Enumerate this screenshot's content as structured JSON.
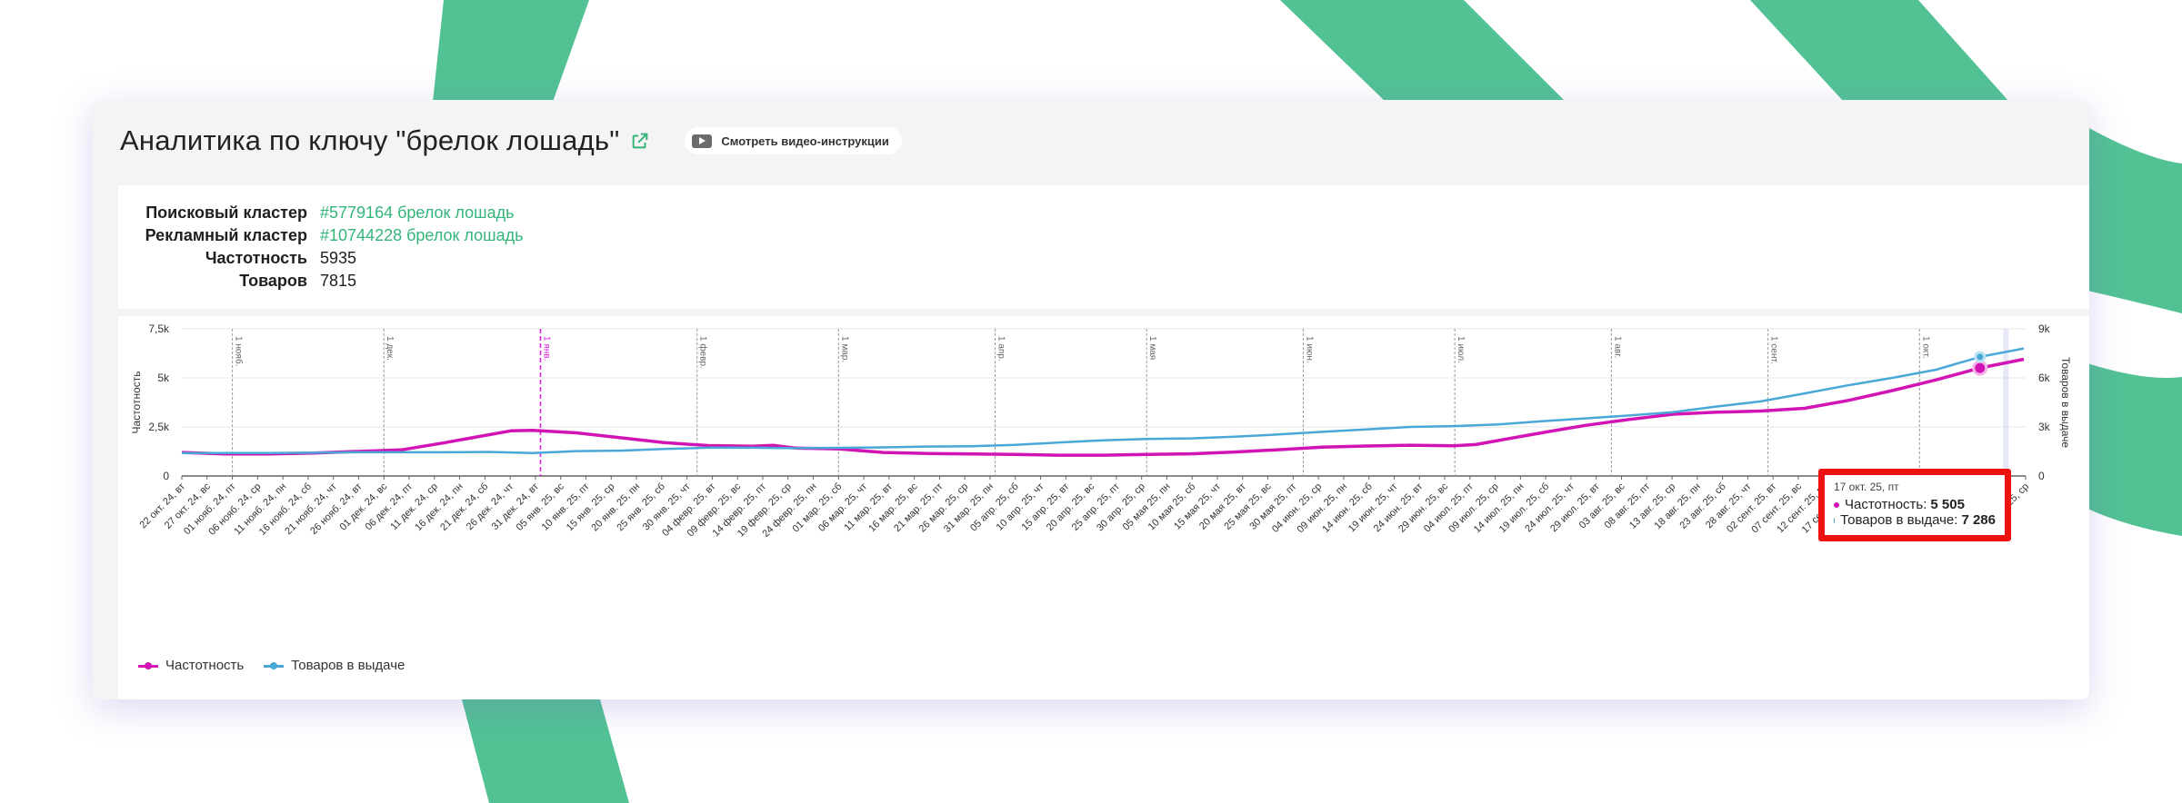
{
  "header": {
    "title": "Аналитика по ключу \"брелок лошадь\"",
    "video_label": "Смотреть видео-инструкции",
    "icons": [
      "external-link-icon",
      "play-icon"
    ]
  },
  "info": {
    "rows": [
      {
        "label": "Поисковый кластер",
        "value": "#5779164 брелок лошадь",
        "link": true
      },
      {
        "label": "Рекламный кластер",
        "value": "#10744228 брелок лошадь",
        "link": true
      },
      {
        "label": "Частотность",
        "value": "5935",
        "link": false
      },
      {
        "label": "Товаров",
        "value": "7815",
        "link": false
      }
    ]
  },
  "colors": {
    "accent_green": "#33b57a",
    "frequency": "#d214b4",
    "products": "#4aa8d8",
    "highlight_line": "#e020e0",
    "tooltip_border": "#ee1111"
  },
  "tooltip": {
    "date": "17 окт. 25, пт",
    "rows": [
      {
        "label": "Частотность:",
        "value": "5 505",
        "color": "#d214b4"
      },
      {
        "label": "Товаров в выдаче:",
        "value": "7 286",
        "color": "#4aa8d8"
      }
    ]
  },
  "chart_data": {
    "type": "line",
    "x_ticks": [
      "22 окт. 24, вт",
      "27 окт. 24, вс",
      "01 нояб. 24, пт",
      "06 нояб. 24, ср",
      "11 нояб. 24, пн",
      "16 нояб. 24, сб",
      "21 нояб. 24, чт",
      "26 нояб. 24, вт",
      "01 дек. 24, вс",
      "06 дек. 24, пт",
      "11 дек. 24, ср",
      "16 дек. 24, пн",
      "21 дек. 24, сб",
      "26 дек. 24, чт",
      "31 дек. 24, вт",
      "05 янв. 25, вс",
      "10 янв. 25, пт",
      "15 янв. 25, ср",
      "20 янв. 25, пн",
      "25 янв. 25, сб",
      "30 янв. 25, чт",
      "04 февр. 25, вт",
      "09 февр. 25, вс",
      "14 февр. 25, пт",
      "19 февр. 25, ср",
      "24 февр. 25, пн",
      "01 мар. 25, сб",
      "06 мар. 25, чт",
      "11 мар. 25, вт",
      "16 мар. 25, вс",
      "21 мар. 25, пт",
      "26 мар. 25, ср",
      "31 мар. 25, пн",
      "05 апр. 25, сб",
      "10 апр. 25, чт",
      "15 апр. 25, вт",
      "20 апр. 25, вс",
      "25 апр. 25, пт",
      "30 апр. 25, ср",
      "05 мая 25, пн",
      "10 мая 25, сб",
      "15 мая 25, чт",
      "20 мая 25, вт",
      "25 мая 25, вс",
      "30 мая 25, пт",
      "04 июн. 25, ср",
      "09 июн. 25, пн",
      "14 июн. 25, сб",
      "19 июн. 25, чт",
      "24 июн. 25, вт",
      "29 июн. 25, вс",
      "04 июл. 25, пт",
      "09 июл. 25, ср",
      "14 июл. 25, пн",
      "19 июл. 25, сб",
      "24 июл. 25, чт",
      "29 июл. 25, вт",
      "03 авг. 25, вс",
      "08 авг. 25, пт",
      "13 авг. 25, ср",
      "18 авг. 25, пн",
      "23 авг. 25, сб",
      "28 авг. 25, чт",
      "02 сент. 25, вт",
      "07 сент. 25, вс",
      "12 сент. 25, пт",
      "17 сент. 25, ср",
      "22 сент. 25, пн",
      "27 сент. 25, сб",
      "02 окт. 25, чт",
      "07 окт. 25, вт",
      "12 окт. 25, вс",
      "17 окт. 25, пт",
      "22 окт. 25, ср"
    ],
    "month_markers": [
      {
        "label": "1 нояб.",
        "index": 2
      },
      {
        "label": "1 дек.",
        "index": 8
      },
      {
        "label": "1 янв.",
        "index": 14.2,
        "highlight": true
      },
      {
        "label": "1 февр.",
        "index": 20.4
      },
      {
        "label": "1 мар.",
        "index": 26
      },
      {
        "label": "1 апр.",
        "index": 32.2
      },
      {
        "label": "1 мая",
        "index": 38.2
      },
      {
        "label": "1 июн.",
        "index": 44.4
      },
      {
        "label": "1 июл.",
        "index": 50.4
      },
      {
        "label": "1 авг.",
        "index": 56.6
      },
      {
        "label": "1 сент.",
        "index": 62.8
      },
      {
        "label": "1 окт.",
        "index": 68.8
      }
    ],
    "y_left": {
      "label": "Частотность",
      "ticks": [
        "0",
        "2,5k",
        "5k",
        "7,5k"
      ],
      "min": 0,
      "max": 7500
    },
    "y_right": {
      "label": "Товаров в выдаче",
      "ticks": [
        "0",
        "3k",
        "6k",
        "9k"
      ],
      "min": 0,
      "max": 9000
    },
    "hover_index": 72,
    "series": [
      {
        "name": "Частотность",
        "axis": "left",
        "color": "#d214b4",
        "points": [
          [
            0,
            1200
          ],
          [
            2,
            1120
          ],
          [
            4,
            1120
          ],
          [
            6,
            1170
          ],
          [
            8,
            1250
          ],
          [
            10,
            1330
          ],
          [
            12,
            1700
          ],
          [
            14,
            2100
          ],
          [
            15,
            2300
          ],
          [
            16,
            2330
          ],
          [
            18,
            2200
          ],
          [
            20,
            1950
          ],
          [
            22,
            1700
          ],
          [
            24,
            1550
          ],
          [
            26,
            1520
          ],
          [
            27,
            1560
          ],
          [
            28,
            1420
          ],
          [
            30,
            1380
          ],
          [
            32,
            1200
          ],
          [
            34,
            1150
          ],
          [
            36,
            1120
          ],
          [
            38,
            1100
          ],
          [
            40,
            1060
          ],
          [
            42,
            1060
          ],
          [
            44,
            1100
          ],
          [
            46,
            1130
          ],
          [
            48,
            1220
          ],
          [
            50,
            1340
          ],
          [
            52,
            1470
          ],
          [
            54,
            1530
          ],
          [
            56,
            1570
          ],
          [
            58,
            1540
          ],
          [
            59,
            1600
          ],
          [
            60,
            1800
          ],
          [
            62,
            2200
          ],
          [
            64,
            2580
          ],
          [
            66,
            2880
          ],
          [
            68,
            3150
          ],
          [
            70,
            3250
          ],
          [
            72,
            3310
          ],
          [
            74,
            3450
          ],
          [
            76,
            3850
          ],
          [
            78,
            4350
          ],
          [
            80,
            4900
          ],
          [
            82,
            5505
          ],
          [
            84,
            5950
          ]
        ]
      },
      {
        "name": "Товаров в выдаче",
        "axis": "right",
        "color": "#4aa8d8",
        "points": [
          [
            0,
            1400
          ],
          [
            4,
            1400
          ],
          [
            8,
            1450
          ],
          [
            12,
            1450
          ],
          [
            14,
            1470
          ],
          [
            16,
            1400
          ],
          [
            18,
            1520
          ],
          [
            20,
            1550
          ],
          [
            22,
            1650
          ],
          [
            24,
            1730
          ],
          [
            26,
            1730
          ],
          [
            28,
            1700
          ],
          [
            30,
            1720
          ],
          [
            32,
            1750
          ],
          [
            34,
            1800
          ],
          [
            36,
            1820
          ],
          [
            38,
            1900
          ],
          [
            40,
            2050
          ],
          [
            42,
            2180
          ],
          [
            44,
            2260
          ],
          [
            46,
            2300
          ],
          [
            48,
            2400
          ],
          [
            50,
            2540
          ],
          [
            52,
            2700
          ],
          [
            54,
            2850
          ],
          [
            56,
            3000
          ],
          [
            58,
            3050
          ],
          [
            60,
            3150
          ],
          [
            62,
            3350
          ],
          [
            64,
            3520
          ],
          [
            66,
            3700
          ],
          [
            68,
            3900
          ],
          [
            70,
            4250
          ],
          [
            72,
            4560
          ],
          [
            74,
            5050
          ],
          [
            76,
            5550
          ],
          [
            78,
            6000
          ],
          [
            80,
            6500
          ],
          [
            82,
            7286
          ],
          [
            84,
            7800
          ]
        ]
      }
    ]
  },
  "legend": {
    "items": [
      {
        "label": "Частотность",
        "color": "#d214b4"
      },
      {
        "label": "Товаров в выдаче",
        "color": "#4aa8d8"
      }
    ]
  }
}
